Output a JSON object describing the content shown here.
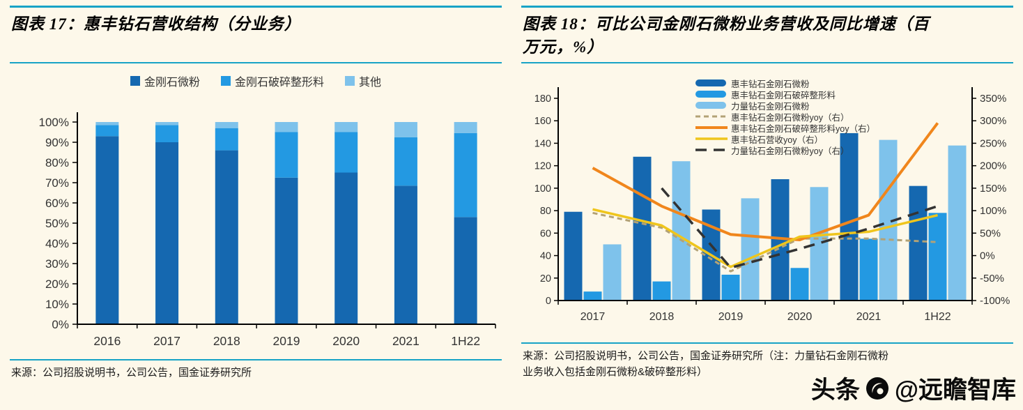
{
  "page": {
    "background": "#FDF8EA",
    "accent_teal": "#17A3C6"
  },
  "watermark": {
    "prefix": "头条",
    "handle": "@远瞻智库",
    "logo": "circle-logo-icon"
  },
  "left_panel": {
    "title": "图表 17：惠丰钻石营收结构（分业务）",
    "source": "来源：公司招股说明书，公司公告，国金证券研究所",
    "chart_data": {
      "type": "bar",
      "variant": "stacked-100-percent",
      "categories": [
        "2016",
        "2017",
        "2018",
        "2019",
        "2020",
        "2021",
        "1H22"
      ],
      "series": [
        {
          "name": "金刚石微粉",
          "color": "#1568B0",
          "values": [
            93,
            90,
            86,
            72.5,
            75,
            68.5,
            53
          ]
        },
        {
          "name": "金刚石破碎整形料",
          "color": "#2399E2",
          "values": [
            5.5,
            8.5,
            11,
            22.5,
            20,
            24,
            41.5
          ]
        },
        {
          "name": "其他",
          "color": "#7EC2EB",
          "values": [
            1.5,
            1.5,
            3,
            5,
            5,
            7.5,
            5.5
          ]
        }
      ],
      "ylabel": "",
      "xlabel": "",
      "ylim": [
        0,
        100
      ],
      "ytick_step": 10,
      "ytick_suffix": "%",
      "grid": false,
      "legend_position": "top-center"
    }
  },
  "right_panel": {
    "title_line1": "图表 18：可比公司金刚石微粉业务营收及同比增速（百",
    "title_line2": "万元，%）",
    "source_line1": "来源：公司招股说明书，公司公告，国金证券研究所（注：力量钻石金刚石微粉",
    "source_line2": "业务收入包括金刚石微粉&破碎整形料）",
    "chart_data": {
      "type": "bar",
      "variant": "grouped-bars-with-lines-dual-axis",
      "categories": [
        "2017",
        "2018",
        "2019",
        "2020",
        "2021",
        "1H22"
      ],
      "bar_series": [
        {
          "name": "惠丰钻石金刚石微粉",
          "color": "#1568B0",
          "values": [
            79,
            128,
            81,
            108,
            149,
            102
          ]
        },
        {
          "name": "惠丰钻石金刚石破碎整形料",
          "color": "#2399E2",
          "values": [
            8,
            17,
            23,
            29,
            55,
            78
          ]
        },
        {
          "name": "力量钻石金刚石微粉",
          "color": "#7EC2EB",
          "values": [
            50,
            124,
            91,
            101,
            143,
            138
          ]
        }
      ],
      "line_series": [
        {
          "name": "惠丰钻石金刚石微粉yoy（右）",
          "color": "#B3A276",
          "dash": "7 5",
          "width": 3,
          "values": [
            95,
            62,
            -35,
            38,
            38,
            30
          ]
        },
        {
          "name": "惠丰钻石金刚石破碎整形料yoy（右）",
          "color": "#F0861C",
          "dash": null,
          "width": 4,
          "values": [
            195,
            110,
            47,
            35,
            90,
            295
          ]
        },
        {
          "name": "惠丰钻石营收yoy（右）",
          "color": "#EFC51C",
          "dash": null,
          "width": 3.5,
          "values": [
            103,
            67,
            -25,
            42,
            53,
            90
          ]
        },
        {
          "name": "力量钻石金刚石微粉yoy（右）",
          "color": "#333333",
          "dash": "16 10",
          "width": 3.5,
          "values": [
            null,
            150,
            -27,
            15,
            60,
            110
          ]
        }
      ],
      "left_axis": {
        "lim": [
          0,
          180
        ],
        "step": 20,
        "suffix": ""
      },
      "right_axis": {
        "lim": [
          -100,
          350
        ],
        "step": 50,
        "suffix": "%"
      },
      "grid": false,
      "legend_position": "inside-top-center"
    }
  }
}
